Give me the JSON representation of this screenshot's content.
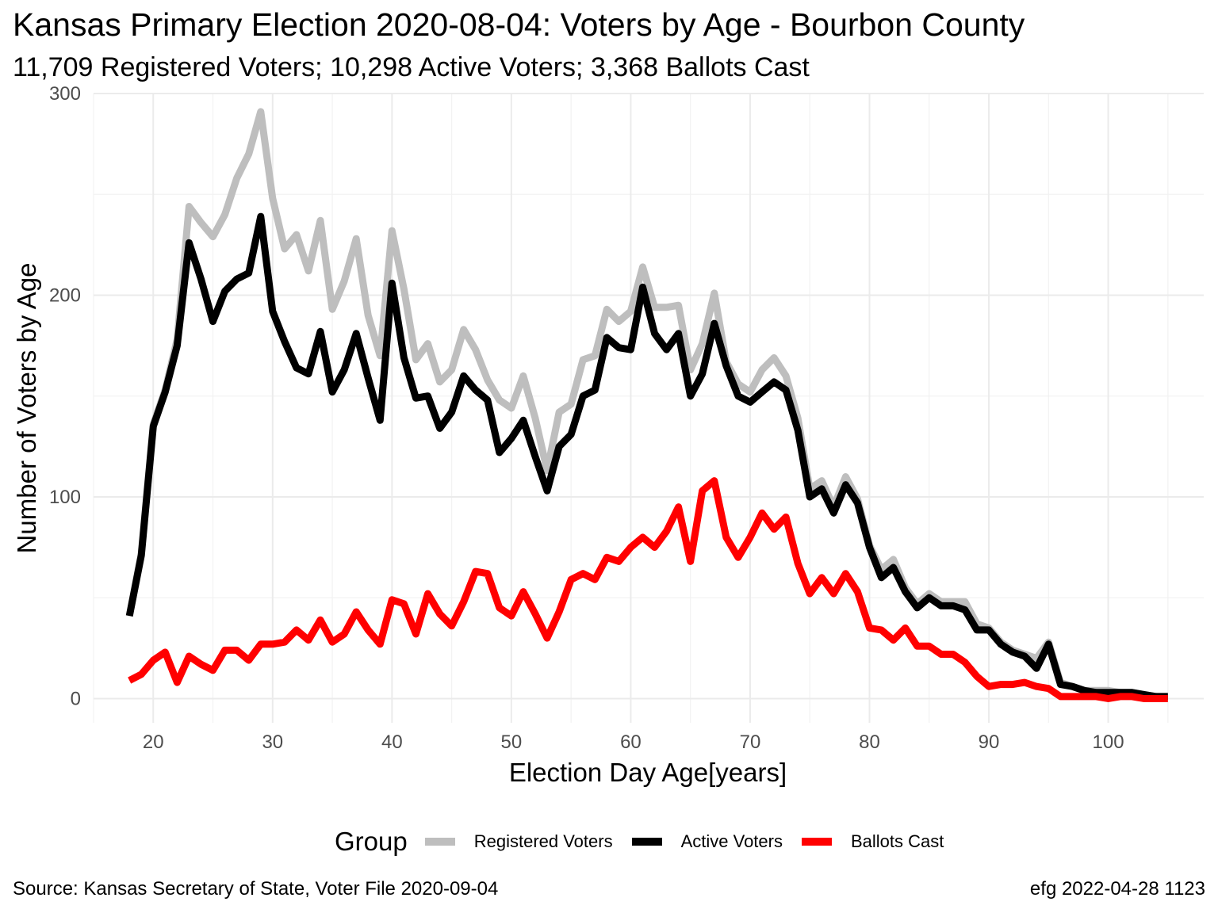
{
  "chart_data": {
    "type": "line",
    "title": "Kansas Primary Election 2020-08-04:  Voters by Age - Bourbon County",
    "subtitle": "11,709 Registered Voters; 10,298 Active Voters; 3,368 Ballots Cast",
    "xlabel": "Election Day Age[years]",
    "ylabel": "Number of Voters by Age",
    "xlim": [
      15,
      108
    ],
    "ylim": [
      -12,
      300
    ],
    "x_ticks": [
      20,
      30,
      40,
      50,
      60,
      70,
      80,
      90,
      100
    ],
    "y_ticks": [
      0,
      100,
      200,
      300
    ],
    "grid": true,
    "legend_title": "Group",
    "legend_position": "bottom",
    "x": [
      18,
      19,
      20,
      21,
      22,
      23,
      24,
      25,
      26,
      27,
      28,
      29,
      30,
      31,
      32,
      33,
      34,
      35,
      36,
      37,
      38,
      39,
      40,
      41,
      42,
      43,
      44,
      45,
      46,
      47,
      48,
      49,
      50,
      51,
      52,
      53,
      54,
      55,
      56,
      57,
      58,
      59,
      60,
      61,
      62,
      63,
      64,
      65,
      66,
      67,
      68,
      69,
      70,
      71,
      72,
      73,
      74,
      75,
      76,
      77,
      78,
      79,
      80,
      81,
      82,
      83,
      84,
      85,
      86,
      87,
      88,
      89,
      90,
      91,
      92,
      93,
      94,
      95,
      96,
      97,
      98,
      99,
      100,
      101,
      102,
      103,
      104,
      105
    ],
    "series": [
      {
        "name": "Registered Voters",
        "color": "#bebebe",
        "values": [
          41,
          72,
          136,
          153,
          178,
          244,
          236,
          229,
          240,
          258,
          270,
          291,
          248,
          223,
          230,
          212,
          237,
          193,
          207,
          228,
          190,
          170,
          232,
          203,
          168,
          176,
          157,
          163,
          183,
          173,
          158,
          148,
          144,
          160,
          139,
          113,
          142,
          146,
          168,
          170,
          193,
          187,
          192,
          214,
          194,
          194,
          195,
          163,
          176,
          201,
          167,
          156,
          152,
          163,
          169,
          160,
          139,
          104,
          108,
          95,
          110,
          99,
          76,
          64,
          69,
          55,
          47,
          52,
          48,
          48,
          48,
          37,
          35,
          28,
          24,
          22,
          20,
          28,
          8,
          6,
          4,
          4,
          4,
          3,
          3,
          2,
          1,
          1
        ]
      },
      {
        "name": "Active Voters",
        "color": "#000000",
        "values": [
          41,
          71,
          135,
          152,
          175,
          226,
          208,
          187,
          202,
          208,
          211,
          239,
          192,
          177,
          164,
          161,
          182,
          152,
          163,
          181,
          159,
          138,
          206,
          169,
          149,
          150,
          134,
          142,
          160,
          153,
          148,
          122,
          129,
          138,
          120,
          103,
          125,
          131,
          150,
          153,
          179,
          174,
          173,
          204,
          181,
          173,
          181,
          150,
          161,
          186,
          165,
          150,
          147,
          152,
          157,
          153,
          133,
          100,
          104,
          92,
          106,
          97,
          75,
          60,
          65,
          53,
          45,
          50,
          46,
          46,
          44,
          34,
          34,
          27,
          23,
          21,
          15,
          27,
          7,
          6,
          4,
          3,
          3,
          3,
          3,
          2,
          1,
          1
        ]
      },
      {
        "name": "Ballots Cast",
        "color": "#ff0000",
        "values": [
          9,
          12,
          19,
          23,
          8,
          21,
          17,
          14,
          24,
          24,
          19,
          27,
          27,
          28,
          34,
          29,
          39,
          28,
          32,
          43,
          34,
          27,
          49,
          47,
          32,
          52,
          42,
          36,
          48,
          63,
          62,
          45,
          41,
          53,
          42,
          30,
          43,
          59,
          62,
          59,
          70,
          68,
          75,
          80,
          75,
          83,
          95,
          68,
          103,
          108,
          80,
          70,
          80,
          92,
          84,
          90,
          67,
          52,
          60,
          52,
          62,
          53,
          35,
          34,
          29,
          35,
          26,
          26,
          22,
          22,
          18,
          11,
          6,
          7,
          7,
          8,
          6,
          5,
          1,
          1,
          1,
          1,
          0,
          1,
          1,
          0,
          0,
          0
        ]
      }
    ]
  },
  "caption": {
    "source": "Source:  Kansas Secretary of State, Voter File  2020-09-04",
    "stamp": "efg 2022-04-28 1123"
  }
}
